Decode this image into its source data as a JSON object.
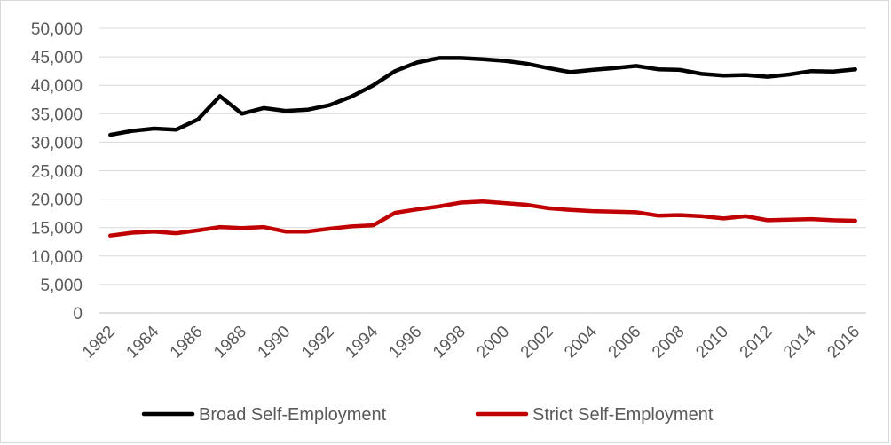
{
  "chart_data": {
    "type": "line",
    "title": "",
    "xlabel": "",
    "ylabel": "",
    "x": [
      1982,
      1983,
      1984,
      1985,
      1986,
      1987,
      1988,
      1989,
      1990,
      1991,
      1992,
      1993,
      1994,
      1995,
      1996,
      1997,
      1998,
      1999,
      2000,
      2001,
      2002,
      2003,
      2004,
      2005,
      2006,
      2007,
      2008,
      2009,
      2010,
      2011,
      2012,
      2013,
      2014,
      2015,
      2016
    ],
    "x_tick_labels": [
      "1982",
      "1984",
      "1986",
      "1988",
      "1990",
      "1992",
      "1994",
      "1996",
      "1998",
      "2000",
      "2002",
      "2004",
      "2006",
      "2008",
      "2010",
      "2012",
      "2014",
      "2016"
    ],
    "ylim": [
      0,
      50000
    ],
    "y_tick_labels": [
      "0",
      "5,000",
      "10,000",
      "15,000",
      "20,000",
      "25,000",
      "30,000",
      "35,000",
      "40,000",
      "45,000",
      "50,000"
    ],
    "y_ticks": [
      0,
      5000,
      10000,
      15000,
      20000,
      25000,
      30000,
      35000,
      40000,
      45000,
      50000
    ],
    "grid": true,
    "legend_position": "bottom",
    "series": [
      {
        "name": "Broad Self-Employment",
        "color": "#000000",
        "values": [
          31300,
          32000,
          32400,
          32200,
          34000,
          38100,
          35000,
          36000,
          35500,
          35700,
          36500,
          38000,
          40000,
          42500,
          44000,
          44800,
          44800,
          44600,
          44300,
          43800,
          43000,
          42300,
          42700,
          43000,
          43400,
          42800,
          42700,
          42000,
          41700,
          41800,
          41500,
          41900,
          42500,
          42400,
          42800
        ]
      },
      {
        "name": "Strict Self-Employment",
        "color": "#c00000",
        "values": [
          13600,
          14100,
          14300,
          14000,
          14500,
          15100,
          14900,
          15100,
          14300,
          14300,
          14800,
          15200,
          15400,
          17600,
          18200,
          18700,
          19400,
          19600,
          19300,
          19000,
          18400,
          18100,
          17900,
          17800,
          17700,
          17100,
          17200,
          17000,
          16600,
          17000,
          16300,
          16400,
          16500,
          16300,
          16200
        ]
      }
    ]
  }
}
